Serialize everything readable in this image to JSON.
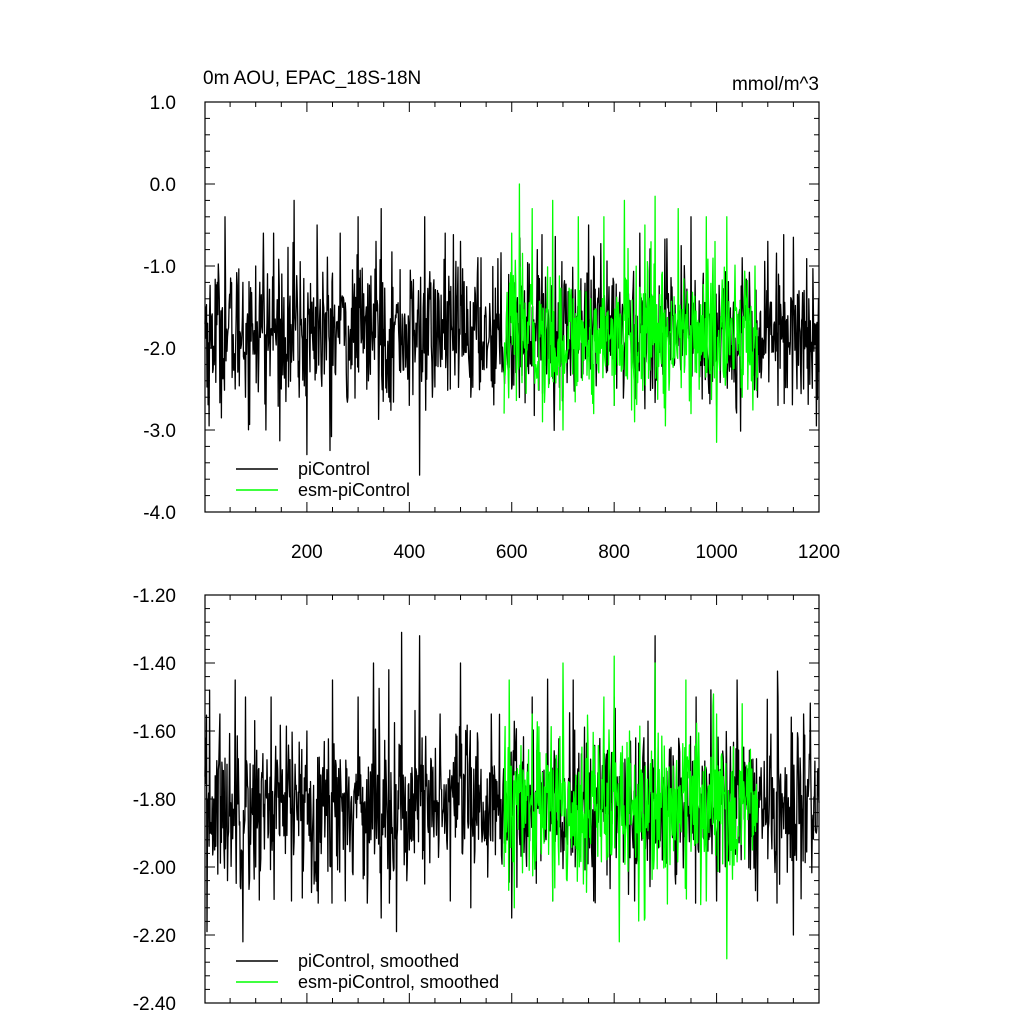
{
  "chart_data": [
    {
      "type": "line",
      "title": "0m AOU, EPAC_18S-18N",
      "units": "mmol/m^3",
      "xlim": [
        1,
        1200
      ],
      "ylim": [
        -4.0,
        1.0
      ],
      "yticks": [
        -4.0,
        -3.0,
        -2.0,
        -1.0,
        0.0,
        1.0
      ],
      "ytick_labels": [
        "-4.0",
        "-3.0",
        "-2.0",
        "-1.0",
        "0.0",
        "1.0"
      ],
      "xticks": [
        200,
        400,
        600,
        800,
        1000,
        1200
      ],
      "xtick_labels": [
        "200",
        "400",
        "600",
        "800",
        "1000",
        "1200"
      ],
      "legend_position": "bottom-left",
      "series": [
        {
          "name": "piControl",
          "color": "#000000",
          "x_start": 1,
          "x_end": 1200,
          "mean": -1.8,
          "noise_range": [
            -3.55,
            -0.2
          ],
          "x": [
            2,
            9,
            25,
            40,
            60,
            75,
            80,
            100,
            115,
            120,
            135,
            150,
            175,
            185,
            200,
            220,
            245,
            265,
            280,
            300,
            320,
            335,
            345,
            360,
            400,
            420,
            430,
            445,
            470,
            480,
            500,
            520,
            540,
            560,
            580,
            600,
            650,
            700,
            750,
            800,
            850,
            900,
            950,
            1000,
            1050,
            1080,
            1100,
            1120,
            1150,
            1170,
            1195
          ],
          "y": [
            -1.5,
            -2.95,
            -1.2,
            -0.4,
            -2.5,
            -1.2,
            -2.6,
            -1.0,
            -0.6,
            -3.0,
            -0.6,
            -2.5,
            -0.2,
            -2.6,
            -3.3,
            -0.5,
            -3.25,
            -0.6,
            -2.6,
            -0.4,
            -2.4,
            -0.7,
            -0.3,
            -2.6,
            -2.7,
            -3.55,
            -0.4,
            -2.6,
            -0.6,
            -2.5,
            -0.7,
            -2.6,
            -0.9,
            -2.4,
            -1.8,
            -2.5,
            -0.8,
            -2.6,
            -0.5,
            -2.7,
            -0.6,
            -2.6,
            -0.4,
            -2.7,
            -0.9,
            -2.6,
            -0.7,
            -2.7,
            -0.65,
            -2.5,
            -2.95
          ]
        },
        {
          "name": "esm-piControl",
          "color": "#00ff00",
          "x_start": 585,
          "x_end": 1080,
          "mean": -1.85,
          "noise_range": [
            -3.15,
            0.0
          ],
          "x": [
            585,
            600,
            615,
            640,
            660,
            680,
            700,
            730,
            760,
            780,
            800,
            820,
            840,
            860,
            880,
            900,
            925,
            950,
            980,
            1000,
            1020,
            1050,
            1075
          ],
          "y": [
            -2.8,
            -0.6,
            0.0,
            -0.3,
            -2.9,
            -0.2,
            -3.0,
            -0.4,
            -2.8,
            -0.4,
            -2.7,
            -0.2,
            -2.9,
            -0.5,
            -0.15,
            -2.95,
            -0.3,
            -2.8,
            -0.4,
            -3.15,
            -0.4,
            -2.6,
            -1.0
          ]
        }
      ]
    },
    {
      "type": "line",
      "xlim": [
        1,
        1200
      ],
      "ylim": [
        -2.4,
        -1.2
      ],
      "yticks": [
        -2.4,
        -2.2,
        -2.0,
        -1.8,
        -1.6,
        -1.4,
        -1.2
      ],
      "ytick_labels": [
        "-2.40",
        "-2.20",
        "-2.00",
        "-1.80",
        "-1.60",
        "-1.40",
        "-1.20"
      ],
      "xticks": [
        200,
        400,
        600,
        800,
        1000,
        1200
      ],
      "legend_position": "bottom-left",
      "series": [
        {
          "name": "piControl, smoothed",
          "color": "#000000",
          "x_start": 1,
          "x_end": 1200,
          "mean": -1.82,
          "noise_range": [
            -2.22,
            -1.31
          ],
          "x": [
            5,
            10,
            20,
            30,
            45,
            60,
            75,
            80,
            100,
            130,
            170,
            200,
            220,
            250,
            275,
            300,
            330,
            345,
            360,
            375,
            385,
            400,
            420,
            430,
            460,
            480,
            500,
            520,
            560,
            600,
            640,
            680,
            720,
            760,
            800,
            840,
            880,
            920,
            960,
            1000,
            1040,
            1080,
            1120,
            1150,
            1170,
            1195
          ],
          "y": [
            -2.19,
            -1.48,
            -1.95,
            -1.55,
            -2.04,
            -1.45,
            -2.22,
            -1.5,
            -2.0,
            -1.5,
            -2.1,
            -1.6,
            -2.07,
            -1.45,
            -2.1,
            -1.5,
            -1.4,
            -2.15,
            -1.42,
            -2.19,
            -1.31,
            -1.95,
            -1.32,
            -2.05,
            -1.55,
            -2.1,
            -1.4,
            -2.12,
            -1.55,
            -2.15,
            -1.5,
            -2.1,
            -1.45,
            -2.1,
            -1.5,
            -2.1,
            -1.32,
            -2.05,
            -1.5,
            -2.1,
            -1.45,
            -2.1,
            -1.5,
            -2.2,
            -1.55,
            -1.9
          ]
        },
        {
          "name": "esm-piControl, smoothed",
          "color": "#00ff00",
          "x_start": 585,
          "x_end": 1080,
          "mean": -1.82,
          "noise_range": [
            -2.27,
            -1.38
          ],
          "x": [
            585,
            595,
            605,
            640,
            680,
            700,
            740,
            780,
            800,
            810,
            830,
            860,
            880,
            900,
            940,
            980,
            1000,
            1020,
            1050,
            1070,
            1080
          ],
          "y": [
            -2.0,
            -1.45,
            -2.12,
            -1.55,
            -2.1,
            -1.4,
            -2.05,
            -1.5,
            -1.38,
            -2.22,
            -1.6,
            -2.15,
            -1.4,
            -2.0,
            -1.45,
            -2.1,
            -1.55,
            -2.27,
            -1.52,
            -1.95,
            -1.8
          ]
        }
      ]
    }
  ]
}
